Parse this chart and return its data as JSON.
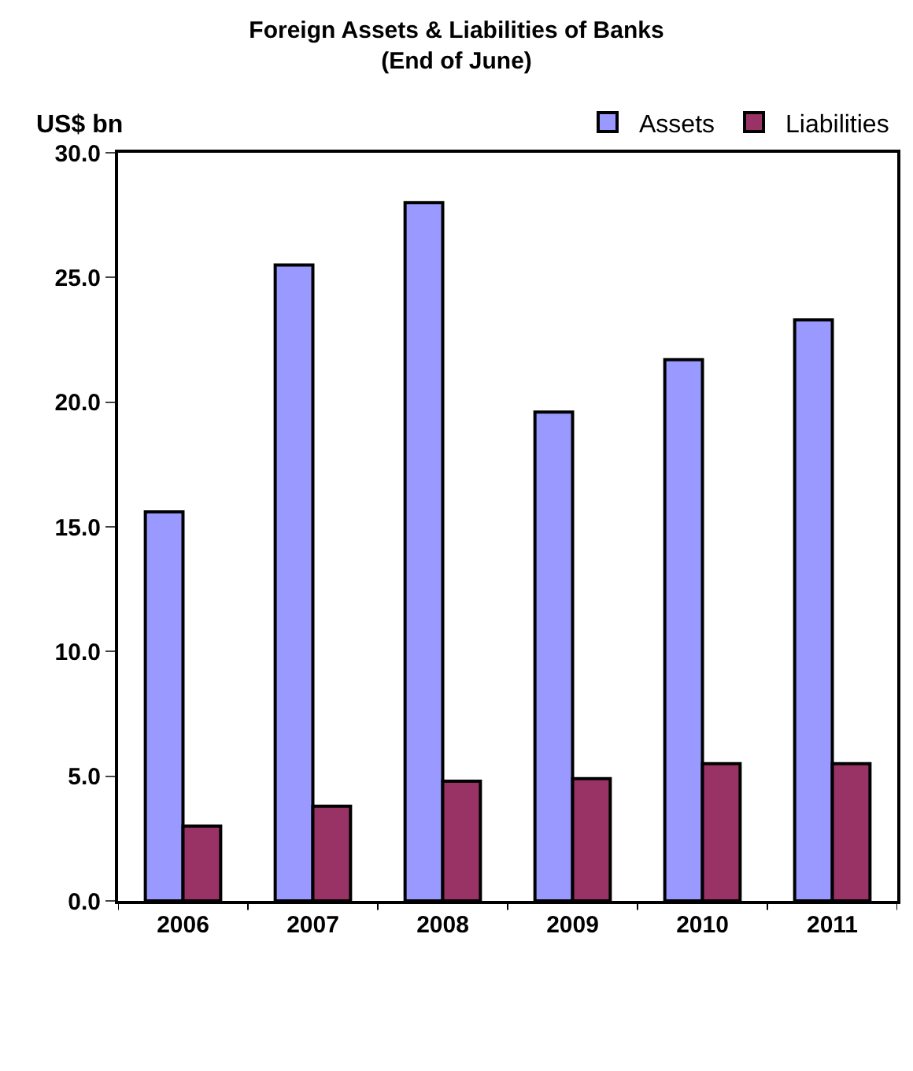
{
  "chart_data": {
    "type": "bar",
    "title": "Foreign Assets & Liabilities of Banks",
    "subtitle": "(End of June)",
    "ylabel": "US$ bn",
    "categories": [
      "2006",
      "2007",
      "2008",
      "2009",
      "2010",
      "2011"
    ],
    "series": [
      {
        "name": "Assets",
        "color": "#9999ff",
        "values": [
          15.6,
          25.5,
          28.0,
          19.6,
          21.7,
          23.3
        ]
      },
      {
        "name": "Liabilities",
        "color": "#993366",
        "values": [
          3.0,
          3.8,
          4.8,
          4.9,
          5.5,
          5.5
        ]
      }
    ],
    "ylim": [
      0,
      30
    ],
    "yticks": [
      {
        "value": 0,
        "label": "0.0"
      },
      {
        "value": 5,
        "label": "5.0"
      },
      {
        "value": 10,
        "label": "10.0"
      },
      {
        "value": 15,
        "label": "15.0"
      },
      {
        "value": 20,
        "label": "20.0"
      },
      {
        "value": 25,
        "label": "25.0"
      },
      {
        "value": 30,
        "label": "30.0"
      }
    ],
    "grid": false,
    "legend": "top right"
  }
}
